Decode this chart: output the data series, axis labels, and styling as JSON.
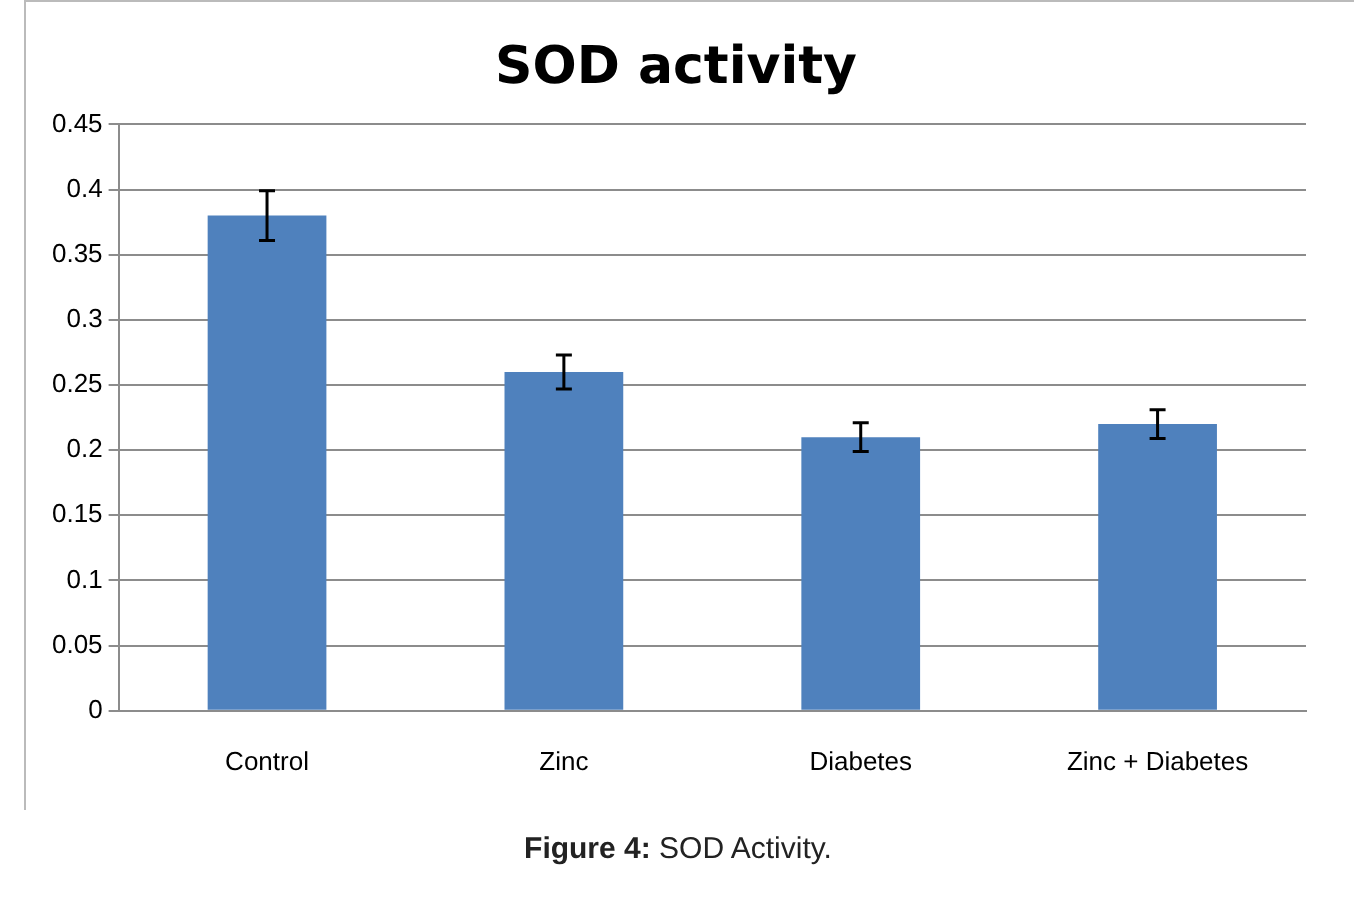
{
  "chart_data": {
    "type": "bar",
    "title": "SOD activity",
    "categories": [
      "Control",
      "Zinc",
      "Diabetes",
      "Zinc + Diabetes"
    ],
    "values": [
      0.38,
      0.26,
      0.21,
      0.22
    ],
    "errors": [
      0.019,
      0.013,
      0.011,
      0.011
    ],
    "color": "#4f81bd",
    "ylim": [
      0,
      0.45
    ],
    "yticks": [
      0,
      0.05,
      0.1,
      0.15,
      0.2,
      0.25,
      0.3,
      0.35,
      0.4,
      0.45
    ],
    "grid": "y",
    "annotations": [
      "Figure 4: SOD Activity."
    ]
  }
}
